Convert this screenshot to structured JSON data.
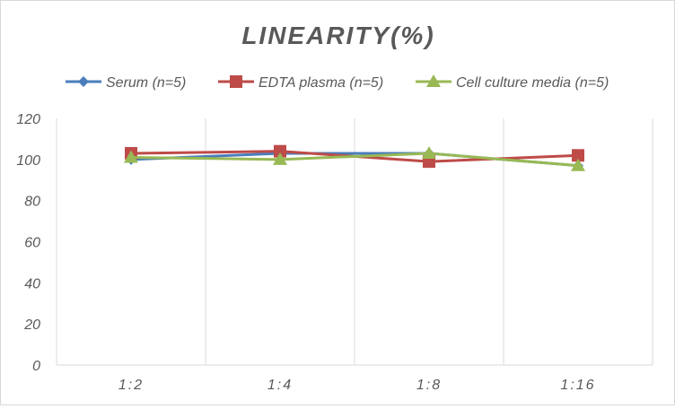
{
  "chart_data": {
    "type": "line",
    "title": "LINEARITY(%)",
    "categories": [
      "1:2",
      "1:4",
      "1:8",
      "1:16"
    ],
    "ylim": [
      0,
      120
    ],
    "yticks": [
      0,
      20,
      40,
      60,
      80,
      100,
      120
    ],
    "grid": "vertical",
    "legend": "top",
    "series": [
      {
        "name": "Serum (n=5)",
        "color": "#4a7ebb",
        "marker": "diamond",
        "values": [
          100,
          103,
          103,
          97
        ]
      },
      {
        "name": "EDTA plasma (n=5)",
        "color": "#be4b48",
        "marker": "square",
        "values": [
          103,
          104,
          99,
          102
        ]
      },
      {
        "name": "Cell culture media (n=5)",
        "color": "#98b954",
        "marker": "triangle",
        "values": [
          101,
          100,
          103,
          97
        ]
      }
    ]
  }
}
